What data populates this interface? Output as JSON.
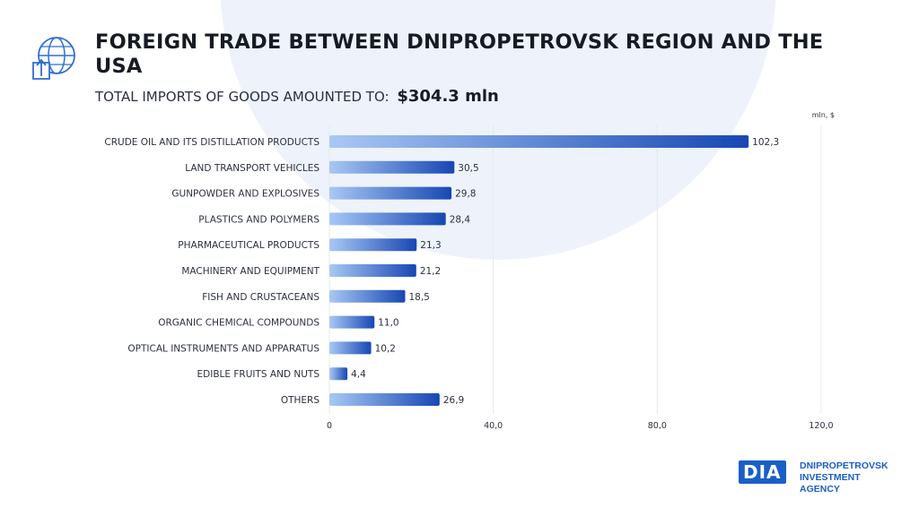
{
  "header": {
    "icon": "globe-upload-box-icon",
    "title": "FOREIGN TRADE BETWEEN DNIPROPETROVSK REGION AND THE USA",
    "subtitle_label": "TOTAL IMPORTS OF GOODS AMOUNTED TO:",
    "subtitle_value": "$304.3 mln"
  },
  "logo": {
    "mark": "DIA",
    "line1": "DNIPROPETROVSK",
    "line2": "INVESTMENT AGENCY"
  },
  "colors": {
    "bar_start": "#a9c8f5",
    "bar_end": "#1747b3",
    "brand": "#1a5fc6"
  },
  "chart_data": {
    "type": "bar",
    "orientation": "horizontal",
    "unit": "mln, $",
    "categories": [
      "CRUDE OIL AND ITS DISTILLATION PRODUCTS",
      "LAND TRANSPORT VEHICLES",
      "GUNPOWDER AND EXPLOSIVES",
      "PLASTICS AND POLYMERS",
      "PHARMACEUTICAL PRODUCTS",
      "MACHINERY AND EQUIPMENT",
      "FISH AND CRUSTACEANS",
      "ORGANIC CHEMICAL COMPOUNDS",
      "OPTICAL INSTRUMENTS AND APPARATUS",
      "EDIBLE FRUITS AND NUTS",
      "OTHERS"
    ],
    "values": [
      102.3,
      30.5,
      29.8,
      28.4,
      21.3,
      21.2,
      18.5,
      11.0,
      10.2,
      4.4,
      26.9
    ],
    "value_labels": [
      "102,3",
      "30,5",
      "29,8",
      "28,4",
      "21,3",
      "21,2",
      "18,5",
      "11,0",
      "10,2",
      "4,4",
      "26,9"
    ],
    "xlim": [
      0,
      120
    ],
    "xticks": [
      0,
      40,
      80,
      120
    ],
    "xtick_labels": [
      "0",
      "40,0",
      "80,0",
      "120,0"
    ],
    "grid": true
  }
}
